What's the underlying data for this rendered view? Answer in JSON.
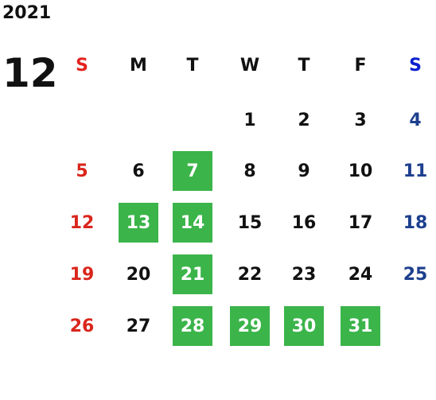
{
  "calendar": {
    "year": "2021",
    "month": "12",
    "weekdays": [
      "S",
      "M",
      "T",
      "W",
      "T",
      "F",
      "S"
    ],
    "weeks": [
      [
        null,
        null,
        null,
        {
          "day": 1,
          "highlight": false
        },
        {
          "day": 2,
          "highlight": false
        },
        {
          "day": 3,
          "highlight": false
        },
        {
          "day": 4,
          "highlight": false
        }
      ],
      [
        {
          "day": 5,
          "highlight": false
        },
        {
          "day": 6,
          "highlight": false
        },
        {
          "day": 7,
          "highlight": true
        },
        {
          "day": 8,
          "highlight": false
        },
        {
          "day": 9,
          "highlight": false
        },
        {
          "day": 10,
          "highlight": false
        },
        {
          "day": 11,
          "highlight": false
        }
      ],
      [
        {
          "day": 12,
          "highlight": false
        },
        {
          "day": 13,
          "highlight": true
        },
        {
          "day": 14,
          "highlight": true
        },
        {
          "day": 15,
          "highlight": false
        },
        {
          "day": 16,
          "highlight": false
        },
        {
          "day": 17,
          "highlight": false
        },
        {
          "day": 18,
          "highlight": false
        }
      ],
      [
        {
          "day": 19,
          "highlight": false
        },
        {
          "day": 20,
          "highlight": false
        },
        {
          "day": 21,
          "highlight": true
        },
        {
          "day": 22,
          "highlight": false
        },
        {
          "day": 23,
          "highlight": false
        },
        {
          "day": 24,
          "highlight": false
        },
        {
          "day": 25,
          "highlight": false
        }
      ],
      [
        {
          "day": 26,
          "highlight": false
        },
        {
          "day": 27,
          "highlight": false
        },
        {
          "day": 28,
          "highlight": true
        },
        {
          "day": 29,
          "highlight": true
        },
        {
          "day": 30,
          "highlight": true
        },
        {
          "day": 31,
          "highlight": true
        },
        null
      ]
    ],
    "sunday_header_color": "#e3231f",
    "saturday_header_color": "#0a1fd0",
    "sunday_color": "#d9261c",
    "saturday_color": "#1d3f8e",
    "weekday_color": "#111111",
    "highlight_color": "#3bb44a",
    "highlight_text_color": "#ffffff"
  }
}
